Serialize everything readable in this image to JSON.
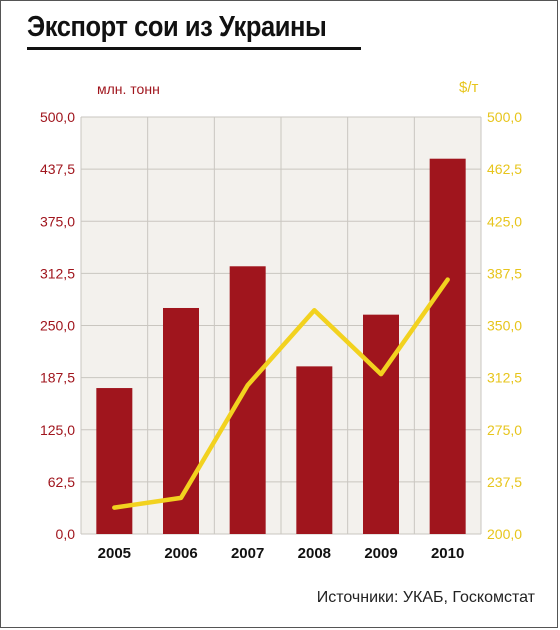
{
  "chart_data": {
    "type": "bar+line",
    "title": "Экспорт сои из Украины",
    "source": "Источники: УКАБ, Госкомстат",
    "categories": [
      "2005",
      "2006",
      "2007",
      "2008",
      "2009",
      "2010"
    ],
    "series": [
      {
        "name": "млн. тонн",
        "type": "bar",
        "axis": "left",
        "color": "#a0151d",
        "values": [
          175,
          271,
          321,
          201,
          263,
          450
        ]
      },
      {
        "name": "$/т",
        "type": "line",
        "axis": "right",
        "color": "#f2d21f",
        "values": [
          219,
          226,
          307,
          361,
          315,
          383
        ]
      }
    ],
    "y_left": {
      "label": "млн. тонн",
      "ylim": [
        0,
        500
      ],
      "ticks": [
        "0,0",
        "62,5",
        "125,0",
        "187,5",
        "250,0",
        "312,5",
        "375,0",
        "437,5",
        "500,0"
      ],
      "color": "#a0151d"
    },
    "y_right": {
      "label": "$/т",
      "ylim": [
        200,
        500
      ],
      "ticks": [
        "200,0",
        "237,5",
        "275,0",
        "312,5",
        "350,0",
        "387,5",
        "425,0",
        "462,5",
        "500,0"
      ],
      "color": "#e7c51c"
    },
    "grid": true
  }
}
